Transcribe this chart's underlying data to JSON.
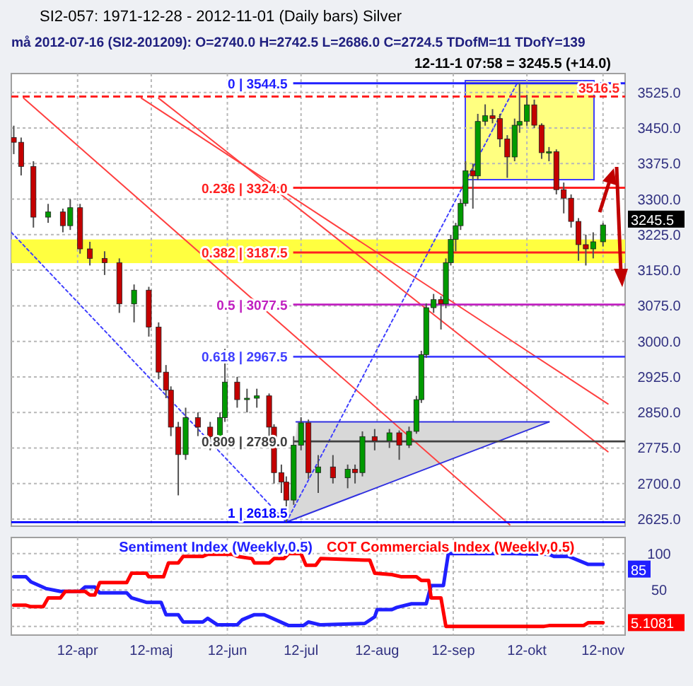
{
  "chart_data": [
    {
      "type": "candlestick",
      "title": "SI2-057: 1971-12-28 - 2012-11-01 (Daily bars) Silver",
      "subtitle": "må 2012-07-16 (SI2-201209): O=2740.0 H=2742.5 L=2686.0 C=2724.5 TDofM=11 TDofY=139",
      "x": [
        "2012-03-06",
        "2012-03-09",
        "2012-03-14",
        "2012-03-20",
        "2012-03-26",
        "2012-03-29",
        "2012-04-02",
        "2012-04-06",
        "2012-04-12",
        "2012-04-18",
        "2012-04-24",
        "2012-04-30",
        "2012-05-04",
        "2012-05-07",
        "2012-05-09",
        "2012-05-12",
        "2012-05-15",
        "2012-05-20",
        "2012-05-25",
        "2012-05-29",
        "2012-05-31",
        "2012-06-05",
        "2012-06-09",
        "2012-06-13",
        "2012-06-18",
        "2012-06-20",
        "2012-06-23",
        "2012-06-25",
        "2012-06-28",
        "2012-07-01",
        "2012-07-04",
        "2012-07-08",
        "2012-07-14",
        "2012-07-20",
        "2012-07-23",
        "2012-07-26",
        "2012-07-31",
        "2012-08-06",
        "2012-08-10",
        "2012-08-14",
        "2012-08-17",
        "2012-08-19",
        "2012-08-21",
        "2012-08-24",
        "2012-08-27",
        "2012-08-29",
        "2012-08-31",
        "2012-09-02",
        "2012-09-04",
        "2012-09-06",
        "2012-09-09",
        "2012-09-11",
        "2012-09-14",
        "2012-09-17",
        "2012-09-20",
        "2012-09-23",
        "2012-09-26",
        "2012-09-28",
        "2012-10-01",
        "2012-10-04",
        "2012-10-07",
        "2012-10-10",
        "2012-10-13",
        "2012-10-16",
        "2012-10-19",
        "2012-10-22",
        "2012-10-25",
        "2012-10-28",
        "2012-11-01"
      ],
      "ohlc": [
        [
          3430,
          3455,
          3395,
          3420
        ],
        [
          3420,
          3430,
          3350,
          3369
        ],
        [
          3369,
          3380,
          3240,
          3262
        ],
        [
          3262,
          3290,
          3250,
          3273
        ],
        [
          3273,
          3280,
          3230,
          3244
        ],
        [
          3244,
          3300,
          3235,
          3282
        ],
        [
          3282,
          3290,
          3185,
          3195
        ],
        [
          3195,
          3210,
          3160,
          3175
        ],
        [
          3175,
          3190,
          3140,
          3166
        ],
        [
          3166,
          3175,
          3060,
          3079
        ],
        [
          3079,
          3120,
          3040,
          3108
        ],
        [
          3108,
          3115,
          3010,
          3030
        ],
        [
          3030,
          3040,
          2920,
          2935
        ],
        [
          2935,
          2950,
          2880,
          2897
        ],
        [
          2897,
          2905,
          2800,
          2819
        ],
        [
          2819,
          2830,
          2675,
          2761
        ],
        [
          2761,
          2860,
          2750,
          2839
        ],
        [
          2839,
          2850,
          2800,
          2819
        ],
        [
          2819,
          2830,
          2770,
          2799
        ],
        [
          2799,
          2850,
          2790,
          2839
        ],
        [
          2839,
          2984,
          2830,
          2914
        ],
        [
          2914,
          2925,
          2860,
          2877
        ],
        [
          2877,
          2900,
          2850,
          2880
        ],
        [
          2880,
          2900,
          2860,
          2885
        ],
        [
          2885,
          2890,
          2800,
          2819
        ],
        [
          2819,
          2825,
          2700,
          2723
        ],
        [
          2723,
          2740,
          2680,
          2703
        ],
        [
          2703,
          2715,
          2618.5,
          2665
        ],
        [
          2665,
          2800,
          2655,
          2781
        ],
        [
          2781,
          2840,
          2770,
          2828
        ],
        [
          2828,
          2835,
          2710,
          2723
        ],
        [
          2723,
          2760,
          2680,
          2735
        ],
        [
          2735,
          2760,
          2700,
          2712
        ],
        [
          2712,
          2740,
          2690,
          2730
        ],
        [
          2730,
          2740,
          2700,
          2723
        ],
        [
          2723,
          2810,
          2715,
          2799
        ],
        [
          2799,
          2815,
          2770,
          2790
        ],
        [
          2790,
          2815,
          2775,
          2807
        ],
        [
          2807,
          2812,
          2750,
          2781
        ],
        [
          2781,
          2820,
          2775,
          2810
        ],
        [
          2810,
          2885,
          2805,
          2877
        ],
        [
          2877,
          2980,
          2870,
          2972
        ],
        [
          2972,
          3080,
          2965,
          3071
        ],
        [
          3071,
          3100,
          3060,
          3088
        ],
        [
          3088,
          3095,
          3025,
          3079
        ],
        [
          3079,
          3175,
          3070,
          3166
        ],
        [
          3166,
          3225,
          3160,
          3215
        ],
        [
          3215,
          3250,
          3190,
          3244
        ],
        [
          3244,
          3300,
          3235,
          3291
        ],
        [
          3291,
          3380,
          3285,
          3360
        ],
        [
          3360,
          3375,
          3280,
          3349
        ],
        [
          3349,
          3480,
          3340,
          3464
        ],
        [
          3464,
          3500,
          3455,
          3476
        ],
        [
          3476,
          3490,
          3460,
          3470
        ],
        [
          3470,
          3480,
          3410,
          3427
        ],
        [
          3427,
          3435,
          3345,
          3389
        ],
        [
          3389,
          3470,
          3380,
          3456
        ],
        [
          3456,
          3544.5,
          3440,
          3464
        ],
        [
          3464,
          3520,
          3455,
          3499
        ],
        [
          3499,
          3510,
          3450,
          3456
        ],
        [
          3456,
          3460,
          3385,
          3398
        ],
        [
          3398,
          3410,
          3380,
          3400
        ],
        [
          3400,
          3405,
          3310,
          3320
        ],
        [
          3320,
          3335,
          3270,
          3302
        ],
        [
          3302,
          3310,
          3240,
          3253
        ],
        [
          3253,
          3260,
          3170,
          3204
        ],
        [
          3204,
          3225,
          3160,
          3195
        ],
        [
          3195,
          3230,
          3175,
          3210
        ],
        [
          3210,
          3250,
          3200,
          3245.5
        ]
      ],
      "series": [
        {
          "type": "line",
          "color": "#ff4040",
          "x": [
            "2012-03-10",
            "2012-09-24"
          ],
          "values": [
            3513,
            2613
          ]
        },
        {
          "type": "line",
          "color": "#ff4040",
          "x": [
            "2012-04-27",
            "2012-11-03"
          ],
          "values": [
            3513,
            2868
          ]
        },
        {
          "type": "line",
          "color": "#ff4040",
          "x": [
            "2012-05-04",
            "2012-11-03"
          ],
          "values": [
            3513,
            2767
          ]
        },
        {
          "type": "line",
          "color": "#4040ff",
          "line_style": "dotted",
          "x": [
            "2012-03-05",
            "2012-06-25"
          ],
          "values": [
            3230,
            2618.5
          ]
        },
        {
          "type": "line",
          "color": "#4040ff",
          "line_style": "dotted",
          "x": [
            "2012-06-25",
            "2012-09-27"
          ],
          "values": [
            2618.5,
            3544.5
          ]
        },
        {
          "type": "line",
          "color": "#3030e0",
          "x": [
            "2012-06-29",
            "2012-10-10"
          ],
          "values": [
            2830,
            2830
          ]
        },
        {
          "type": "line",
          "color": "#3030e0",
          "x": [
            "2012-06-25",
            "2012-10-10"
          ],
          "values": [
            2618.5,
            2830
          ]
        }
      ],
      "xlim": [
        "2012-03-05",
        "2012-11-10"
      ],
      "xticks": [
        {
          "value": "2012-04-01",
          "label": null
        },
        {
          "value": "2012-05-01",
          "label": null
        },
        {
          "value": "2012-06-01",
          "label": null
        },
        {
          "value": "2012-07-01",
          "label": null
        },
        {
          "value": "2012-08-01",
          "label": null
        },
        {
          "value": "2012-09-01",
          "label": null
        },
        {
          "value": "2012-10-01",
          "label": null
        },
        {
          "value": "2012-11-01",
          "label": null
        }
      ],
      "ylim": [
        2610,
        3565
      ],
      "yticks": [
        {
          "value": 2625,
          "label": "2625.0"
        },
        {
          "value": 2700,
          "label": "2700.0"
        },
        {
          "value": 2775,
          "label": "2775.0"
        },
        {
          "value": 2850,
          "label": "2850.0"
        },
        {
          "value": 2925,
          "label": "2925.0"
        },
        {
          "value": 3000,
          "label": "3000.0"
        },
        {
          "value": 3075,
          "label": "3075.0"
        },
        {
          "value": 3150,
          "label": "3150.0"
        },
        {
          "value": 3225,
          "label": "3225.0"
        },
        {
          "value": 3300,
          "label": "3300.0"
        },
        {
          "value": 3375,
          "label": "3375.0"
        },
        {
          "value": 3450,
          "label": "3450.0"
        },
        {
          "value": 3525,
          "label": "3525.0"
        }
      ],
      "tick_labels": "y",
      "grid": true,
      "bands": [
        {
          "axis": "y",
          "from": 3165,
          "to": 3215,
          "color": "#ffff40"
        }
      ],
      "ref_lines": [
        {
          "axis": "y",
          "value": 3544.5,
          "label": "0 | 3544.5",
          "color": "#2020ff"
        },
        {
          "axis": "y",
          "value": 3516.5,
          "label": "3516.5",
          "color": "#ff2020",
          "line_style": "dashed"
        },
        {
          "axis": "y",
          "value": 3324.0,
          "label": "0.236 | 3324.0",
          "color": "#ff2020"
        },
        {
          "axis": "y",
          "value": 3187.5,
          "label": "0.382 | 3187.5",
          "color": "#ff2020"
        },
        {
          "axis": "y",
          "value": 3077.5,
          "label": "0.5 | 3077.5",
          "color": "#c020c0"
        },
        {
          "axis": "y",
          "value": 2967.5,
          "label": "0.618 | 2967.5",
          "color": "#4040ff"
        },
        {
          "axis": "y",
          "value": 2789.0,
          "label": "0.809 | 2789.0",
          "color": "#404040"
        },
        {
          "axis": "y",
          "value": 2618.5,
          "label": "1 | 2618.5",
          "color": "#0000ff"
        }
      ],
      "annotations": [
        "12-11-1 07:58 = 3245.5 (+14.0)",
        {
          "text": "3245.5",
          "x": "2012-11-01",
          "y": 3245.5
        }
      ]
    },
    {
      "type": "line",
      "legend": "top",
      "grid": true,
      "series": [
        {
          "name": "Sentiment Index (Weekly,0.5)",
          "color": "#2020ff",
          "x": [
            "2012-03-06",
            "2012-03-11",
            "2012-03-13",
            "2012-03-19",
            "2012-03-25",
            "2012-04-02",
            "2012-04-04",
            "2012-04-08",
            "2012-04-10",
            "2012-04-21",
            "2012-04-23",
            "2012-04-29",
            "2012-05-05",
            "2012-05-07",
            "2012-05-12",
            "2012-05-14",
            "2012-05-22",
            "2012-05-24",
            "2012-05-28",
            "2012-06-05",
            "2012-06-07",
            "2012-06-12",
            "2012-06-16",
            "2012-06-18",
            "2012-06-26",
            "2012-07-02",
            "2012-07-04",
            "2012-07-09",
            "2012-07-27",
            "2012-07-31",
            "2012-08-01",
            "2012-08-07",
            "2012-08-09",
            "2012-08-15",
            "2012-08-21",
            "2012-08-23",
            "2012-08-28",
            "2012-08-30",
            "2012-09-26",
            "2012-10-10",
            "2012-10-12",
            "2012-10-18",
            "2012-10-26",
            "2012-11-01"
          ],
          "values": [
            68,
            68,
            61,
            52,
            48,
            48,
            54,
            54,
            46,
            46,
            39,
            33,
            33,
            16,
            16,
            6,
            6,
            11,
            2,
            2,
            9,
            16,
            16,
            13,
            1,
            1,
            6,
            2,
            4,
            13,
            23,
            23,
            26,
            31,
            31,
            56,
            56,
            100,
            100,
            99,
            96,
            96,
            85,
            85
          ]
        },
        {
          "name": "COT Commercials Index (Weekly,0.5)",
          "color": "#ff0000",
          "x": [
            "2012-03-06",
            "2012-03-11",
            "2012-03-13",
            "2012-03-18",
            "2012-03-20",
            "2012-03-25",
            "2012-03-27",
            "2012-04-04",
            "2012-04-06",
            "2012-04-08",
            "2012-04-10",
            "2012-04-21",
            "2012-04-23",
            "2012-04-29",
            "2012-04-30",
            "2012-05-06",
            "2012-05-08",
            "2012-05-12",
            "2012-05-14",
            "2012-05-22",
            "2012-05-24",
            "2012-06-03",
            "2012-06-05",
            "2012-06-11",
            "2012-06-12",
            "2012-06-18",
            "2012-06-20",
            "2012-06-24",
            "2012-06-26",
            "2012-07-01",
            "2012-07-03",
            "2012-07-07",
            "2012-07-09",
            "2012-07-27",
            "2012-07-29",
            "2012-07-31",
            "2012-08-07",
            "2012-08-11",
            "2012-08-17",
            "2012-08-19",
            "2012-08-22",
            "2012-08-23",
            "2012-08-27",
            "2012-08-29",
            "2012-10-08",
            "2012-10-10",
            "2012-10-24",
            "2012-10-26",
            "2012-11-01"
          ],
          "values": [
            29,
            29,
            27,
            27,
            39,
            39,
            48,
            48,
            43,
            43,
            60,
            60,
            73,
            73,
            68,
            68,
            87,
            87,
            96,
            96,
            99,
            99,
            96,
            93,
            87,
            87,
            93,
            93,
            100,
            100,
            84,
            84,
            93,
            91,
            91,
            73,
            71,
            68,
            68,
            63,
            63,
            39,
            39,
            0,
            0,
            1,
            1,
            5,
            5.1081
          ]
        }
      ],
      "xlim": [
        "2012-03-05",
        "2012-11-10"
      ],
      "xticks": [
        {
          "value": "2012-04-01",
          "label": "12-apr"
        },
        {
          "value": "2012-05-01",
          "label": "12-maj"
        },
        {
          "value": "2012-06-01",
          "label": "12-jun"
        },
        {
          "value": "2012-07-01",
          "label": "12-jul"
        },
        {
          "value": "2012-08-01",
          "label": "12-aug"
        },
        {
          "value": "2012-09-01",
          "label": "12-sep"
        },
        {
          "value": "2012-10-01",
          "label": "12-okt"
        },
        {
          "value": "2012-11-01",
          "label": "12-nov"
        }
      ],
      "ylim": [
        -12,
        122
      ],
      "yticks": [
        {
          "value": 0,
          "label": null
        },
        {
          "value": 25,
          "label": null
        },
        50,
        {
          "value": 75,
          "label": null
        },
        100
      ],
      "annotations": [
        {
          "text": "85",
          "x": "2012-11-01",
          "y": 85
        },
        {
          "text": "5.1081",
          "x": "2012-11-01",
          "y": 5.1081
        }
      ]
    }
  ]
}
